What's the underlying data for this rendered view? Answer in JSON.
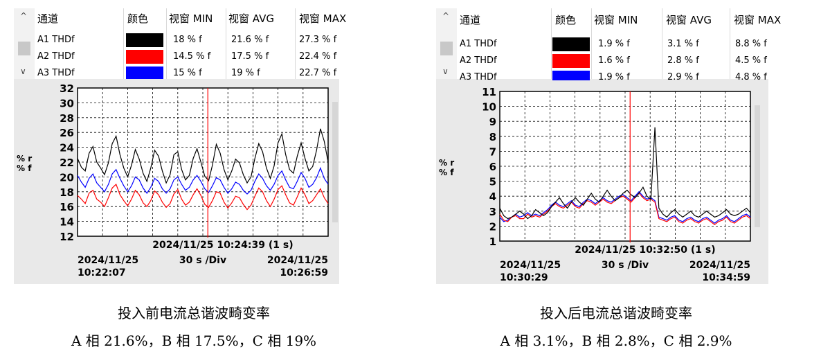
{
  "panels": [
    {
      "table": {
        "headers": [
          "通道",
          "颜色",
          "视窗 MIN",
          "视窗 AVG",
          "视窗 MAX"
        ],
        "rows": [
          {
            "channel": "A1 THDf",
            "color": "#000000",
            "min": "18 % f",
            "avg": "21.6 % f",
            "max": "27.3 % f"
          },
          {
            "channel": "A2 THDf",
            "color": "#ff0000",
            "min": "14.5 % f",
            "avg": "17.5 % f",
            "max": "22.4 % f"
          },
          {
            "channel": "A3 THDf",
            "color": "#0000ff",
            "min": "15 % f",
            "avg": "19 % f",
            "max": "22.7 % f"
          }
        ]
      },
      "ylabel": "% r\n% f",
      "cursor_label": "2024/11/25  10:24:39 (1 s)",
      "start_label": "2024/11/25\n10:22:07",
      "div_label": "30 s /Div",
      "end_label": "2024/11/25\n10:26:59",
      "caption_line1": "投入前电流总谐波畸变率",
      "caption_line2": "A 相 21.6%，B 相 17.5%，C 相 19%"
    },
    {
      "table": {
        "headers": [
          "通道",
          "颜色",
          "视窗 MIN",
          "视窗 AVG",
          "视窗 MAX"
        ],
        "rows": [
          {
            "channel": "A1 THDf",
            "color": "#000000",
            "min": "1.9 % f",
            "avg": "3.1 % f",
            "max": "8.8 % f"
          },
          {
            "channel": "A2 THDf",
            "color": "#ff0000",
            "min": "1.6 % f",
            "avg": "2.8 % f",
            "max": "4.5 % f"
          },
          {
            "channel": "A3 THDf",
            "color": "#0000ff",
            "min": "1.9 % f",
            "avg": "2.9 % f",
            "max": "4.8 % f"
          }
        ]
      },
      "ylabel": "% r\n% f",
      "cursor_label": "2024/11/25  10:32:50 (1 s)",
      "start_label": "2024/11/25\n10:30:29",
      "div_label": "30 s /Div",
      "end_label": "2024/11/25\n10:34:59",
      "caption_line1": "投入后电流总谐波畸变率",
      "caption_line2": "A 相 3.1%，B 相 2.8%，C 相 2.9%"
    }
  ],
  "chart_data": [
    {
      "type": "line",
      "ylim": [
        12,
        32
      ],
      "y_ticks": [
        12,
        14,
        16,
        18,
        20,
        22,
        24,
        26,
        28,
        30,
        32
      ],
      "x_start": "10:22:07",
      "x_end": "10:26:59",
      "x_div": "30 s /Div",
      "cursor_time": "10:24:39",
      "series": [
        {
          "name": "A1 THDf",
          "color": "#000000",
          "min": 18,
          "avg": 21.6,
          "max": 27.3,
          "values": [
            22.5,
            21.3,
            20.8,
            23.2,
            24.1,
            22.0,
            21.2,
            20.3,
            21.9,
            24.5,
            25.5,
            23.0,
            21.2,
            20.0,
            21.6,
            23.7,
            22.4,
            20.5,
            19.4,
            21.2,
            23.6,
            22.8,
            20.8,
            19.2,
            20.3,
            23.0,
            23.4,
            21.0,
            19.6,
            20.2,
            22.5,
            23.8,
            22.0,
            20.1,
            19.5,
            21.6,
            24.4,
            23.2,
            21.0,
            19.6,
            20.8,
            22.4,
            21.9,
            20.3,
            19.2,
            20.0,
            22.5,
            24.5,
            23.4,
            21.2,
            19.8,
            21.5,
            24.6,
            25.8,
            23.0,
            21.0,
            20.5,
            22.8,
            24.6,
            22.5,
            20.8,
            21.4,
            23.6,
            26.5,
            24.8,
            22.0
          ]
        },
        {
          "name": "A2 THDf",
          "color": "#ff0000",
          "min": 14.5,
          "avg": 17.5,
          "max": 22.4,
          "values": [
            17.5,
            17.0,
            16.4,
            17.8,
            18.2,
            17.0,
            16.6,
            16.0,
            17.2,
            18.5,
            19.0,
            17.6,
            16.8,
            16.1,
            17.0,
            18.2,
            17.6,
            16.5,
            16.0,
            16.8,
            18.1,
            17.6,
            16.6,
            15.9,
            16.4,
            17.7,
            18.3,
            17.0,
            16.2,
            16.6,
            17.6,
            18.4,
            17.5,
            16.3,
            15.9,
            16.8,
            18.0,
            17.8,
            16.6,
            15.8,
            16.5,
            17.4,
            17.2,
            16.3,
            15.6,
            16.2,
            17.4,
            18.5,
            18.0,
            16.8,
            16.0,
            17.0,
            18.3,
            18.8,
            17.6,
            16.5,
            16.2,
            17.3,
            18.5,
            17.6,
            16.4,
            16.8,
            17.6,
            18.4,
            17.2,
            16.4
          ]
        },
        {
          "name": "A3 THDf",
          "color": "#0000ff",
          "min": 15,
          "avg": 19,
          "max": 22.7,
          "values": [
            20.2,
            19.3,
            18.6,
            19.8,
            20.4,
            19.2,
            18.6,
            18.0,
            19.0,
            20.4,
            21.0,
            19.8,
            18.8,
            18.0,
            18.8,
            20.0,
            19.6,
            18.5,
            17.8,
            18.6,
            19.8,
            19.4,
            18.4,
            17.8,
            18.4,
            19.6,
            20.0,
            19.0,
            18.2,
            18.6,
            19.6,
            20.2,
            19.4,
            18.4,
            17.9,
            18.8,
            19.9,
            19.6,
            18.6,
            17.8,
            18.4,
            19.3,
            19.0,
            18.2,
            17.7,
            18.2,
            19.4,
            20.4,
            19.8,
            18.8,
            18.2,
            19.0,
            20.2,
            20.8,
            19.6,
            18.6,
            18.4,
            19.4,
            20.6,
            19.8,
            18.6,
            19.0,
            19.9,
            21.2,
            19.8,
            19.0
          ]
        }
      ]
    },
    {
      "type": "line",
      "ylim": [
        1,
        11
      ],
      "y_ticks": [
        1,
        2,
        3,
        4,
        5,
        6,
        7,
        8,
        9,
        10,
        11
      ],
      "x_start": "10:30:29",
      "x_end": "10:34:59",
      "x_div": "30 s /Div",
      "cursor_time": "10:32:50",
      "series": [
        {
          "name": "A1 THDf",
          "color": "#000000",
          "min": 1.9,
          "avg": 3.1,
          "max": 8.8,
          "values": [
            3.2,
            2.7,
            2.5,
            2.6,
            2.8,
            3.0,
            2.8,
            2.5,
            2.7,
            3.1,
            2.9,
            2.7,
            2.9,
            3.3,
            3.6,
            3.9,
            3.5,
            3.2,
            3.6,
            3.9,
            3.6,
            3.4,
            3.8,
            4.2,
            3.8,
            3.6,
            4.0,
            4.4,
            4.0,
            3.7,
            3.9,
            4.2,
            4.4,
            4.1,
            3.9,
            4.2,
            4.6,
            4.0,
            3.8,
            8.6,
            3.2,
            2.8,
            2.6,
            2.9,
            3.1,
            2.8,
            2.6,
            2.8,
            3.0,
            2.7,
            2.6,
            2.8,
            3.0,
            2.8,
            2.6,
            2.7,
            2.9,
            3.1,
            2.8,
            2.7,
            2.8,
            3.0,
            3.2,
            2.9
          ]
        },
        {
          "name": "A2 THDf",
          "color": "#ff0000",
          "min": 1.6,
          "avg": 2.8,
          "max": 4.5,
          "values": [
            2.8,
            2.4,
            2.3,
            2.6,
            2.7,
            2.5,
            2.5,
            2.8,
            2.6,
            2.7,
            2.6,
            2.8,
            3.0,
            3.3,
            3.5,
            3.3,
            3.2,
            3.4,
            3.6,
            3.3,
            3.2,
            3.5,
            3.7,
            3.6,
            3.4,
            3.6,
            3.8,
            3.6,
            3.5,
            3.7,
            3.9,
            4.0,
            3.8,
            3.6,
            3.9,
            4.2,
            3.9,
            3.7,
            3.8,
            3.6,
            2.5,
            2.4,
            2.3,
            2.5,
            2.6,
            2.3,
            2.2,
            2.4,
            2.5,
            2.3,
            2.2,
            2.4,
            2.5,
            2.3,
            2.1,
            2.3,
            2.4,
            2.6,
            2.3,
            2.2,
            2.4,
            2.6,
            2.7,
            2.5
          ]
        },
        {
          "name": "A3 THDf",
          "color": "#0000ff",
          "min": 1.9,
          "avg": 2.9,
          "max": 4.8,
          "values": [
            2.6,
            2.3,
            2.4,
            2.6,
            2.8,
            2.6,
            2.7,
            2.9,
            2.7,
            2.8,
            2.7,
            2.9,
            3.1,
            3.4,
            3.6,
            3.4,
            3.3,
            3.5,
            3.7,
            3.4,
            3.3,
            3.6,
            3.8,
            3.7,
            3.5,
            3.7,
            3.9,
            3.7,
            3.6,
            3.8,
            4.0,
            4.1,
            3.9,
            3.7,
            4.0,
            4.3,
            4.0,
            3.8,
            3.9,
            3.7,
            2.6,
            2.5,
            2.4,
            2.6,
            2.7,
            2.4,
            2.3,
            2.5,
            2.6,
            2.4,
            2.3,
            2.5,
            2.6,
            2.4,
            2.2,
            2.4,
            2.5,
            2.7,
            2.4,
            2.3,
            2.5,
            2.7,
            2.8,
            2.6
          ]
        }
      ]
    }
  ]
}
